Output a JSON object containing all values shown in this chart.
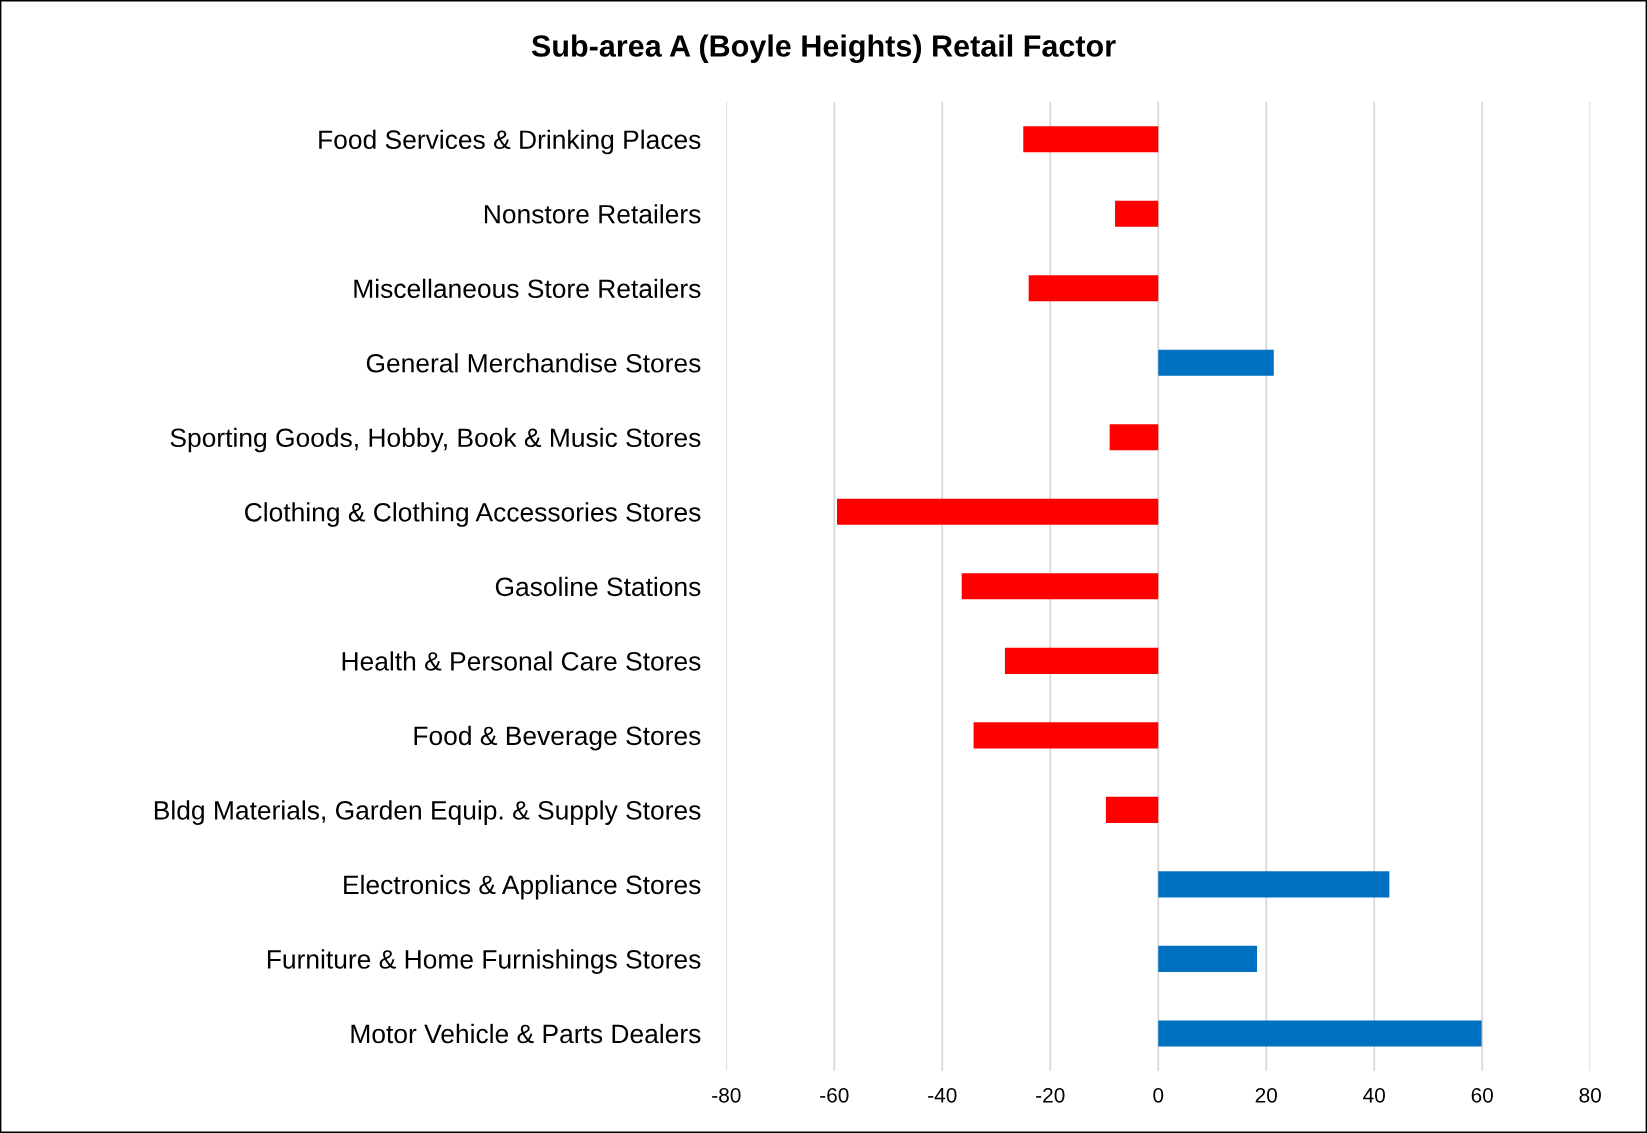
{
  "chart_data": {
    "type": "bar",
    "orientation": "horizontal",
    "title": "Sub-area A (Boyle Heights) Retail Factor",
    "categories": [
      "Food Services & Drinking Places",
      "Nonstore Retailers",
      "Miscellaneous Store Retailers",
      "General Merchandise Stores",
      "Sporting Goods, Hobby, Book & Music Stores",
      "Clothing & Clothing Accessories Stores",
      "Gasoline Stations",
      "Health & Personal Care Stores",
      "Food & Beverage Stores",
      "Bldg Materials, Garden Equip. & Supply Stores",
      "Electronics & Appliance Stores",
      "Furniture & Home Furnishings Stores",
      "Motor Vehicle & Parts Dealers"
    ],
    "values": [
      -25,
      -8,
      -24,
      21.4,
      -9,
      -59.5,
      -36.4,
      -28.4,
      -34.2,
      -9.7,
      42.8,
      18.3,
      59.9
    ],
    "colors": [
      "#ff0000",
      "#ff0000",
      "#ff0000",
      "#0070c0",
      "#ff0000",
      "#ff0000",
      "#ff0000",
      "#ff0000",
      "#ff0000",
      "#ff0000",
      "#0070c0",
      "#0070c0",
      "#0070c0"
    ],
    "xlim": [
      -80,
      80
    ],
    "xticks": [
      -80,
      -60,
      -40,
      -20,
      0,
      20,
      40,
      60,
      80
    ],
    "grid": "x"
  }
}
